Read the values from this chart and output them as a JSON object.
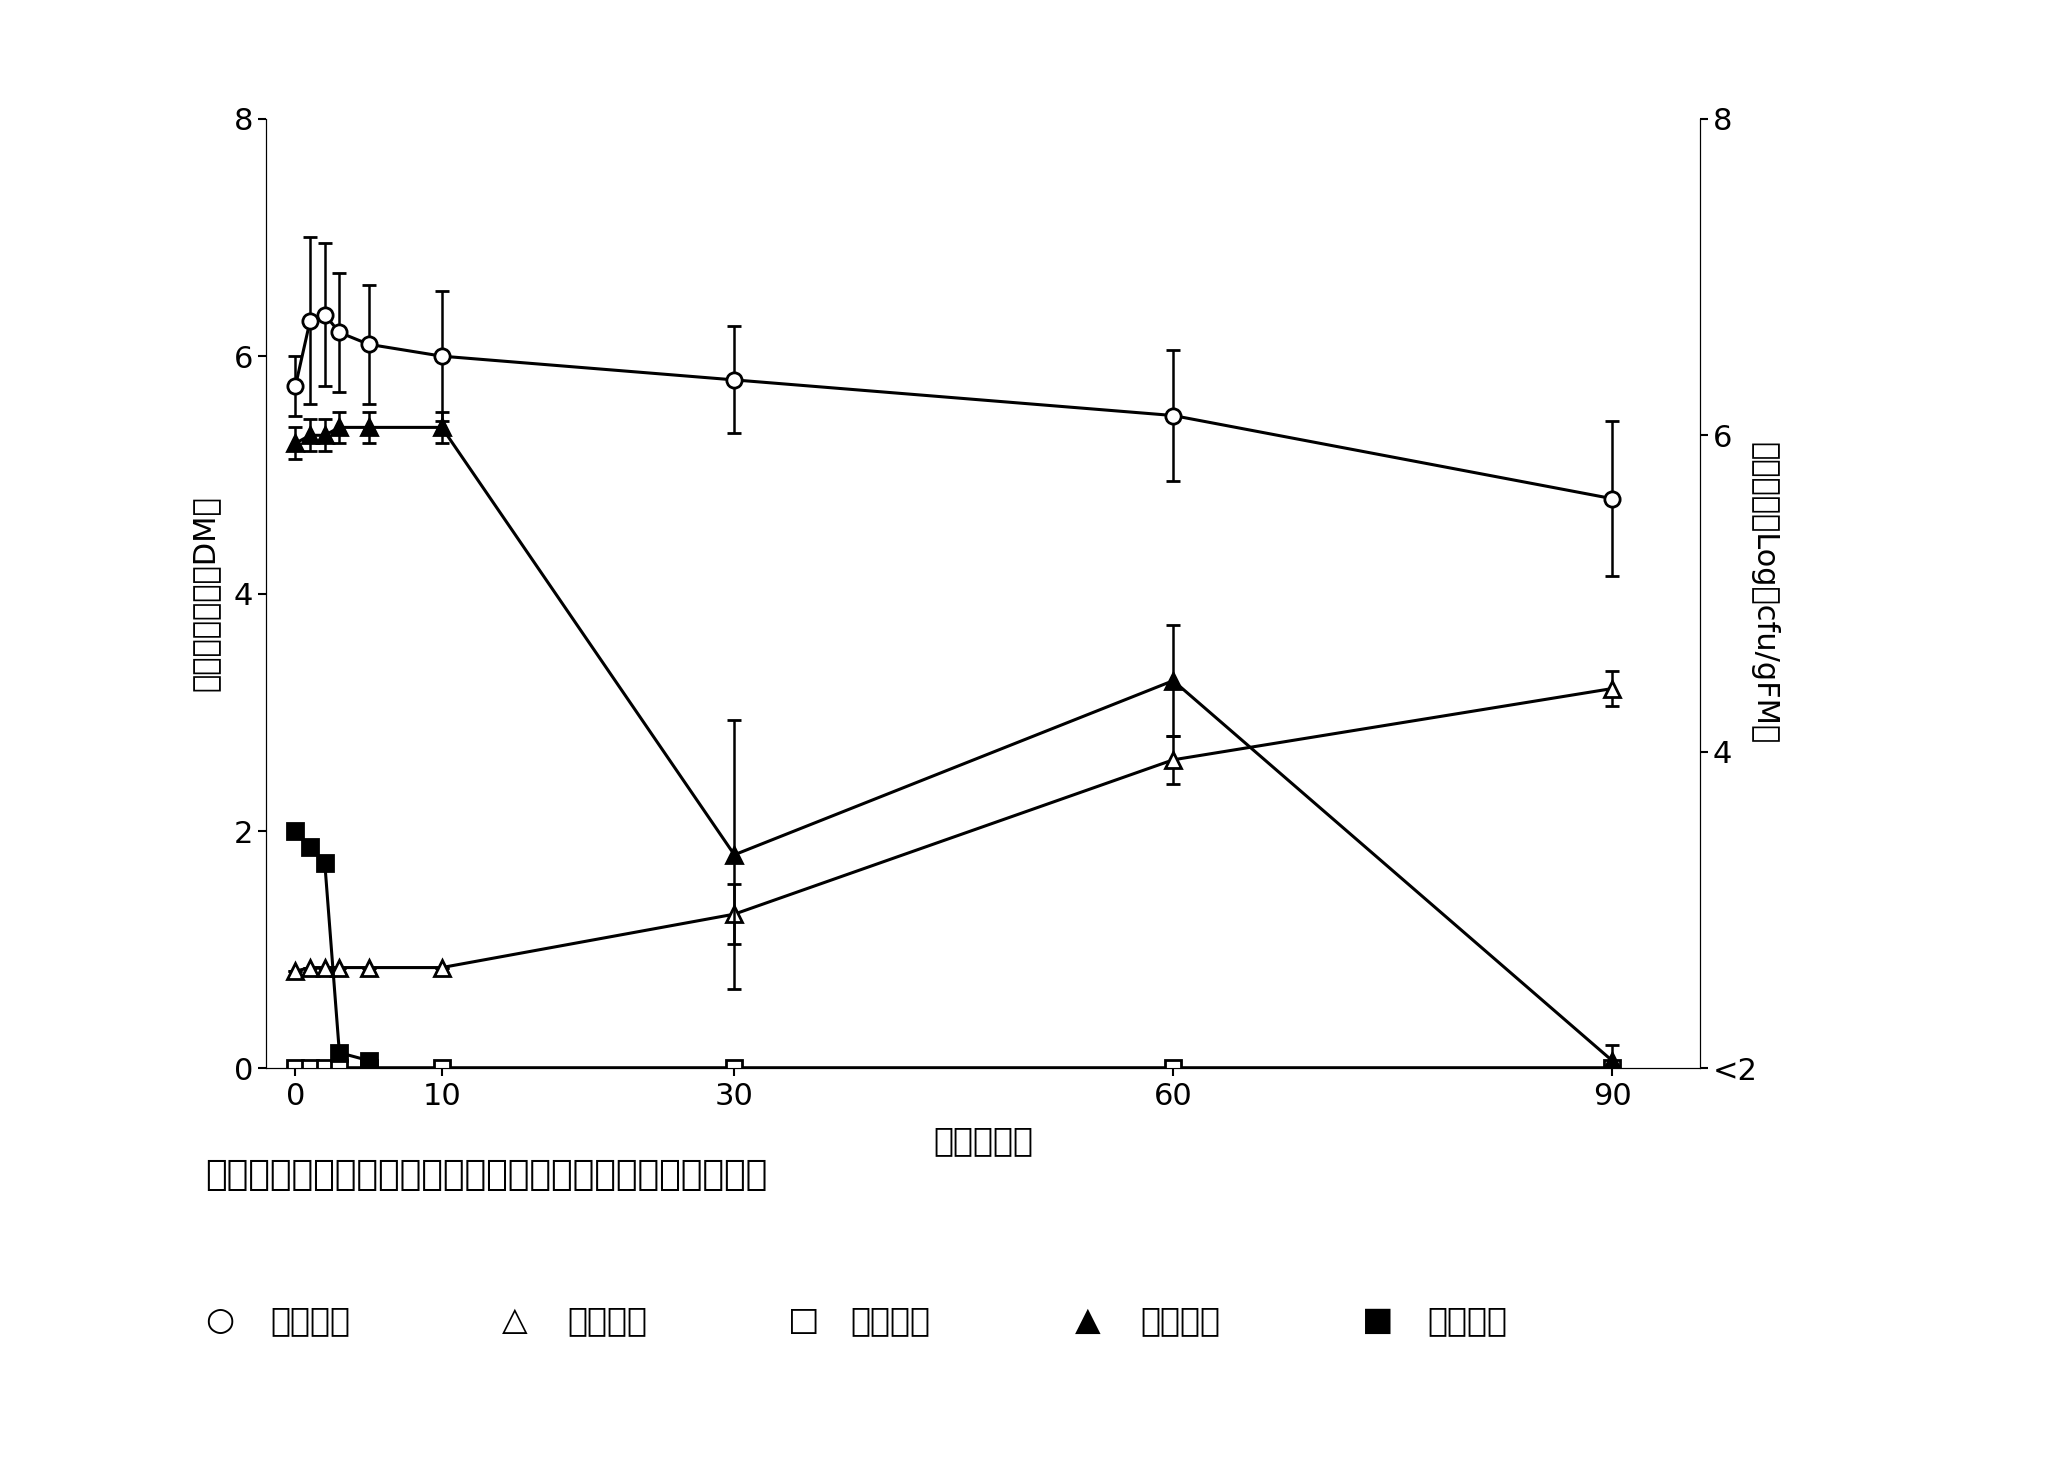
{
  "xlabel": "再貴蔵日数",
  "ylabel_left": "有機酸含量（％DM）",
  "ylabel_right": "微生物数（Logーcfu/gFM）",
  "fig_caption": "図２．再貴蔵期間が有機酸含量，微生物数に及ぼす影響．",
  "legend_line": "○：乳酸，　△：酢酸，　□：酊酸，　▲：酵母，　■：カビ．",
  "xticks": [
    0,
    10,
    30,
    60,
    90
  ],
  "ylim_left": [
    0,
    8
  ],
  "ylim_right": [
    2,
    8
  ],
  "lactic_x": [
    0,
    1,
    2,
    3,
    5,
    10,
    30,
    60,
    90
  ],
  "lactic_y": [
    5.75,
    6.3,
    6.35,
    6.2,
    6.1,
    6.0,
    5.8,
    5.5,
    4.8
  ],
  "lactic_yerr": [
    0.25,
    0.7,
    0.6,
    0.5,
    0.5,
    0.55,
    0.45,
    0.55,
    0.65
  ],
  "acetic_x": [
    0,
    1,
    2,
    3,
    5,
    10,
    30,
    60,
    90
  ],
  "acetic_y": [
    0.82,
    0.85,
    0.85,
    0.85,
    0.85,
    0.85,
    1.3,
    2.6,
    3.2
  ],
  "acetic_yerr": [
    0.0,
    0.0,
    0.0,
    0.0,
    0.0,
    0.0,
    0.25,
    0.2,
    0.15
  ],
  "butyric_x": [
    0,
    1,
    2,
    3,
    5,
    10,
    30,
    60,
    90
  ],
  "butyric_y": [
    0.0,
    0.0,
    0.0,
    0.0,
    0.0,
    0.0,
    0.0,
    0.0,
    0.0
  ],
  "yeast_x": [
    0,
    1,
    2,
    3,
    5,
    10,
    30,
    60,
    90
  ],
  "yeast_y": [
    5.95,
    6.0,
    6.0,
    6.05,
    6.05,
    6.05,
    3.35,
    4.45,
    2.05
  ],
  "yeast_yerr": [
    0.1,
    0.1,
    0.1,
    0.1,
    0.1,
    0.1,
    0.85,
    0.35,
    0.1
  ],
  "mold_x": [
    0,
    1,
    2,
    3,
    5
  ],
  "mold_y": [
    3.5,
    3.4,
    3.3,
    2.1,
    2.05
  ],
  "background": "#ffffff",
  "line_color": "#000000",
  "marker_size": 11,
  "linewidth": 2.2
}
